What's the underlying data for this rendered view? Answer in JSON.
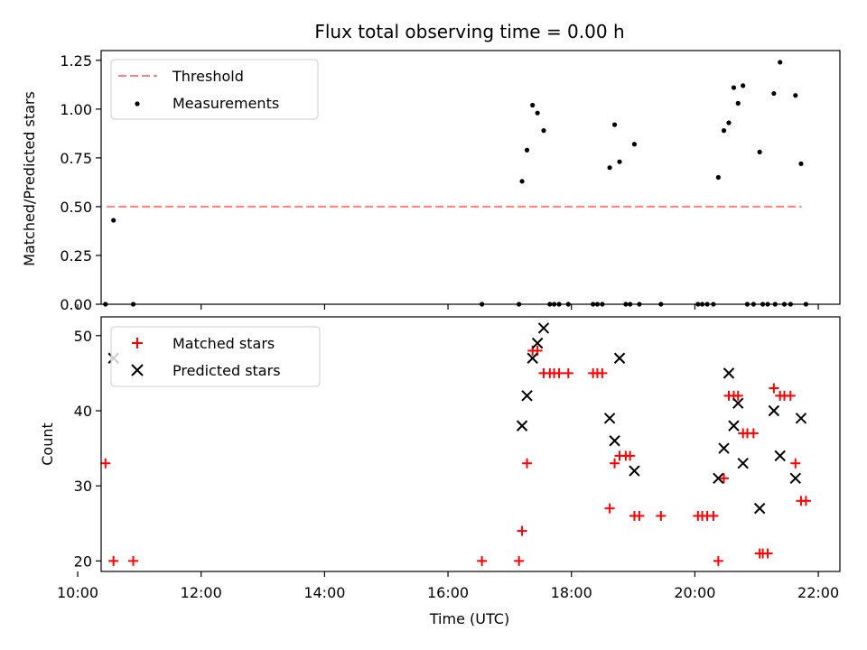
{
  "chart_data": [
    {
      "type": "line",
      "title": "Flux total observing time = 0.00 h",
      "xlabel": "",
      "ylabel": "Matched/Predicted stars",
      "xlim": [
        10.38,
        22.35
      ],
      "ylim": [
        0.0,
        1.3
      ],
      "yticks": [
        "0.00",
        "0.25",
        "0.50",
        "0.75",
        "1.00",
        "1.25"
      ],
      "legend": "top-left",
      "grid": false,
      "series": [
        {
          "name": "Threshold",
          "kind": "line",
          "style": "dashed",
          "color": "#ff7f7f",
          "x": [
            10.47,
            21.73
          ],
          "y": [
            0.5,
            0.5
          ]
        },
        {
          "name": "Measurements",
          "kind": "scatter",
          "marker": "dot",
          "color": "#000000",
          "points": [
            [
              10.45,
              0.0
            ],
            [
              10.58,
              0.43
            ],
            [
              10.9,
              0.0
            ],
            [
              16.55,
              0.0
            ],
            [
              17.15,
              0.0
            ],
            [
              17.2,
              0.63
            ],
            [
              17.28,
              0.79
            ],
            [
              17.37,
              1.02
            ],
            [
              17.45,
              0.98
            ],
            [
              17.55,
              0.89
            ],
            [
              17.65,
              0.0
            ],
            [
              17.72,
              0.0
            ],
            [
              17.8,
              0.0
            ],
            [
              17.95,
              0.0
            ],
            [
              18.35,
              0.0
            ],
            [
              18.42,
              0.0
            ],
            [
              18.5,
              0.0
            ],
            [
              18.62,
              0.7
            ],
            [
              18.7,
              0.92
            ],
            [
              18.78,
              0.73
            ],
            [
              18.88,
              0.0
            ],
            [
              18.95,
              0.0
            ],
            [
              19.02,
              0.82
            ],
            [
              19.1,
              0.0
            ],
            [
              19.45,
              0.0
            ],
            [
              20.05,
              0.0
            ],
            [
              20.12,
              0.0
            ],
            [
              20.2,
              0.0
            ],
            [
              20.3,
              0.0
            ],
            [
              20.38,
              0.65
            ],
            [
              20.47,
              0.89
            ],
            [
              20.55,
              0.93
            ],
            [
              20.63,
              1.11
            ],
            [
              20.7,
              1.03
            ],
            [
              20.78,
              1.12
            ],
            [
              20.85,
              0.0
            ],
            [
              20.95,
              0.0
            ],
            [
              21.05,
              0.78
            ],
            [
              21.1,
              0.0
            ],
            [
              21.18,
              0.0
            ],
            [
              21.28,
              1.08
            ],
            [
              21.3,
              0.0
            ],
            [
              21.38,
              1.24
            ],
            [
              21.45,
              0.0
            ],
            [
              21.55,
              0.0
            ],
            [
              21.63,
              1.07
            ],
            [
              21.72,
              0.72
            ],
            [
              21.8,
              0.0
            ]
          ]
        }
      ]
    },
    {
      "type": "scatter",
      "title": "",
      "xlabel": "Time (UTC)",
      "ylabel": "Count",
      "xlim": [
        10.38,
        22.35
      ],
      "ylim": [
        18.6,
        52.5
      ],
      "yticks": [
        "20",
        "30",
        "40",
        "50"
      ],
      "xticks": [
        "10:00",
        "12:00",
        "14:00",
        "16:00",
        "18:00",
        "20:00",
        "22:00"
      ],
      "legend": "top-left",
      "grid": false,
      "series": [
        {
          "name": "Matched stars",
          "marker": "+",
          "color": "#ff0000",
          "points": [
            [
              10.45,
              33
            ],
            [
              10.58,
              20
            ],
            [
              10.9,
              20
            ],
            [
              16.55,
              20
            ],
            [
              17.15,
              20
            ],
            [
              17.2,
              24
            ],
            [
              17.28,
              33
            ],
            [
              17.37,
              48
            ],
            [
              17.45,
              48
            ],
            [
              17.55,
              45
            ],
            [
              17.65,
              45
            ],
            [
              17.72,
              45
            ],
            [
              17.8,
              45
            ],
            [
              17.95,
              45
            ],
            [
              18.35,
              45
            ],
            [
              18.42,
              45
            ],
            [
              18.5,
              45
            ],
            [
              18.62,
              27
            ],
            [
              18.7,
              33
            ],
            [
              18.78,
              34
            ],
            [
              18.88,
              34
            ],
            [
              18.95,
              34
            ],
            [
              19.02,
              26
            ],
            [
              19.1,
              26
            ],
            [
              19.45,
              26
            ],
            [
              20.05,
              26
            ],
            [
              20.12,
              26
            ],
            [
              20.2,
              26
            ],
            [
              20.3,
              26
            ],
            [
              20.38,
              20
            ],
            [
              20.47,
              31
            ],
            [
              20.55,
              42
            ],
            [
              20.63,
              42
            ],
            [
              20.7,
              42
            ],
            [
              20.78,
              37
            ],
            [
              20.85,
              37
            ],
            [
              20.95,
              37
            ],
            [
              21.05,
              21
            ],
            [
              21.1,
              21
            ],
            [
              21.18,
              21
            ],
            [
              21.28,
              43
            ],
            [
              21.38,
              42
            ],
            [
              21.45,
              42
            ],
            [
              21.55,
              42
            ],
            [
              21.63,
              33
            ],
            [
              21.72,
              28
            ],
            [
              21.8,
              28
            ]
          ]
        },
        {
          "name": "Predicted stars",
          "marker": "x",
          "color": "#000000",
          "points": [
            [
              10.58,
              47
            ],
            [
              17.2,
              38
            ],
            [
              17.28,
              42
            ],
            [
              17.37,
              47
            ],
            [
              17.45,
              49
            ],
            [
              17.55,
              51
            ],
            [
              18.62,
              39
            ],
            [
              18.7,
              36
            ],
            [
              18.78,
              47
            ],
            [
              19.02,
              32
            ],
            [
              20.38,
              31
            ],
            [
              20.47,
              35
            ],
            [
              20.55,
              45
            ],
            [
              20.63,
              38
            ],
            [
              20.7,
              41
            ],
            [
              20.78,
              33
            ],
            [
              21.05,
              27
            ],
            [
              21.28,
              40
            ],
            [
              21.38,
              34
            ],
            [
              21.63,
              31
            ],
            [
              21.72,
              39
            ]
          ]
        }
      ]
    }
  ]
}
